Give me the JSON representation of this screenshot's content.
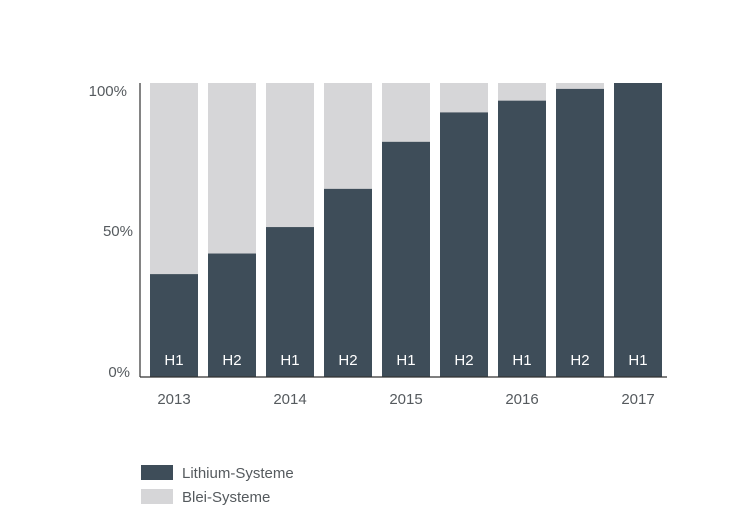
{
  "chart_data": {
    "type": "bar",
    "stacked": true,
    "categories": [
      "H1",
      "H2",
      "H1",
      "H2",
      "H1",
      "H2",
      "H1",
      "H2",
      "H1"
    ],
    "year_labels": [
      {
        "label": "2013",
        "bar_index": 0
      },
      {
        "label": "2014",
        "bar_index": 2
      },
      {
        "label": "2015",
        "bar_index": 4
      },
      {
        "label": "2016",
        "bar_index": 6
      },
      {
        "label": "2017",
        "bar_index": 8
      }
    ],
    "series": [
      {
        "name": "Lithium-Systeme",
        "color": "#3e4d59",
        "values": [
          35,
          42,
          51,
          64,
          80,
          90,
          94,
          98,
          100
        ]
      },
      {
        "name": "Blei-Systeme",
        "color": "#d6d6d8",
        "values": [
          65,
          58,
          49,
          36,
          20,
          10,
          6,
          2,
          0
        ]
      }
    ],
    "y_ticks": [
      "0%",
      "50%",
      "100%"
    ],
    "ylim": [
      0,
      100
    ],
    "grid": false,
    "legend_position": "bottom-left"
  }
}
